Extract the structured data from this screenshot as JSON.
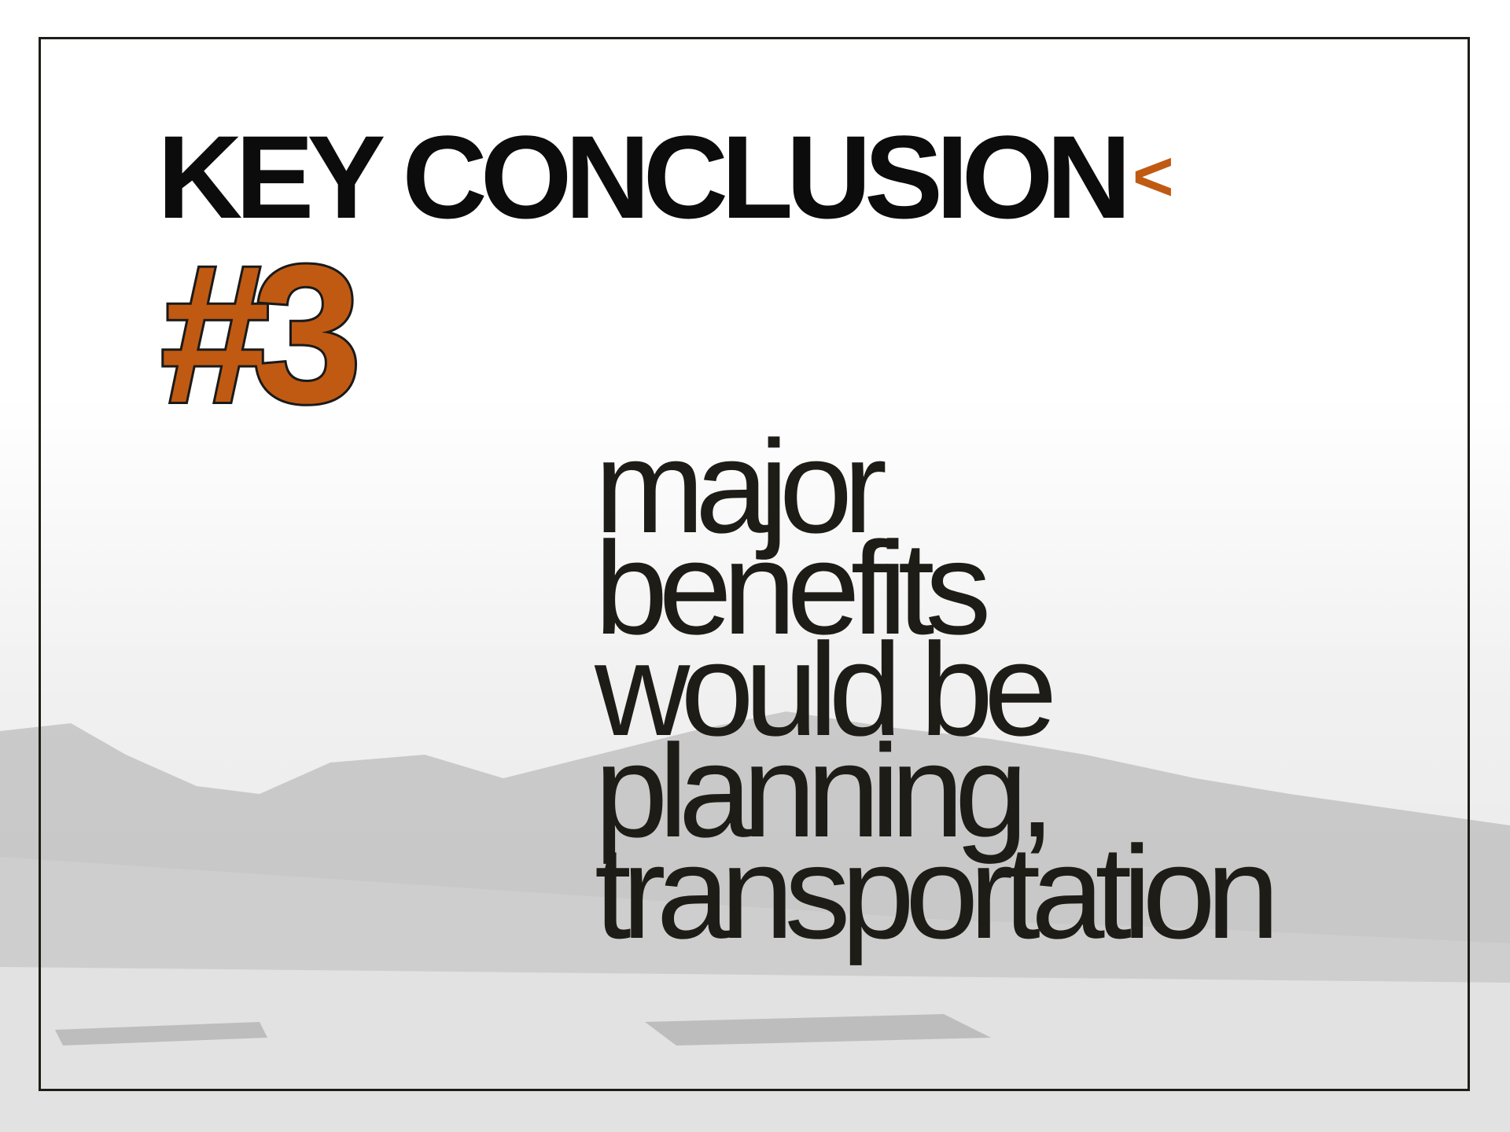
{
  "title": "KEY CONCLUSION",
  "marker": "<",
  "number": "#3",
  "body_lines": [
    "major",
    "benefits",
    "would be",
    "planning,",
    "transportation"
  ]
}
